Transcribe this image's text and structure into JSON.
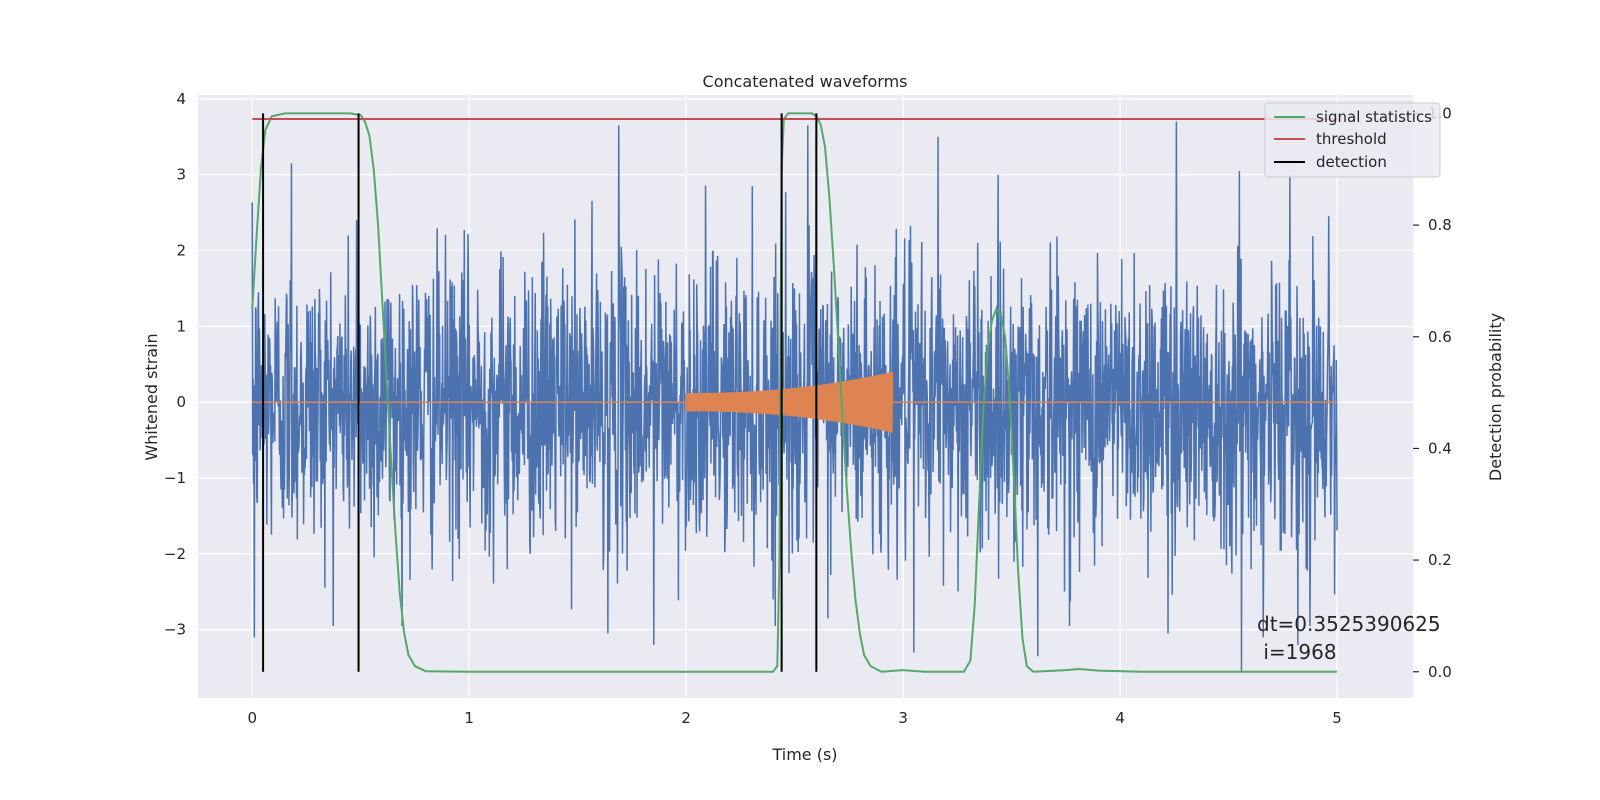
{
  "chart_data": {
    "type": "line",
    "title": "Concatenated waveforms",
    "xlabel": "Time (s)",
    "ylabel": "Whitened strain",
    "ylabel_right": "Detection probability",
    "xlim": [
      -0.25,
      5.35
    ],
    "ylim": [
      -3.9,
      4.05
    ],
    "ylim_right": [
      -0.047,
      1.033
    ],
    "x_ticks": [
      0,
      1,
      2,
      3,
      4,
      5
    ],
    "x_tick_labels": [
      "0",
      "1",
      "2",
      "3",
      "4",
      "5"
    ],
    "y_ticks": [
      -3,
      -2,
      -1,
      0,
      1,
      2,
      3,
      4
    ],
    "y_tick_labels": [
      "−3",
      "−2",
      "−1",
      "0",
      "1",
      "2",
      "3",
      "4"
    ],
    "y_ticks_right": [
      0.0,
      0.2,
      0.4,
      0.6,
      0.8,
      1.0
    ],
    "y_tick_labels_right": [
      "0.0",
      "0.2",
      "0.4",
      "0.6",
      "0.8",
      "1.0"
    ],
    "grid": true,
    "legend_position": "top-right",
    "series": [
      {
        "name": "",
        "kind": "noisy-strain",
        "color": "#4c72b0",
        "axis": "left",
        "x_range": [
          0,
          5
        ],
        "spikes": [
          {
            "x": 0.01,
            "y": -3.1
          },
          {
            "x": 0.18,
            "y": 3.15
          },
          {
            "x": 0.48,
            "y": 2.4
          },
          {
            "x": 1.69,
            "y": 3.65
          },
          {
            "x": 1.64,
            "y": -3.05
          },
          {
            "x": 1.85,
            "y": -3.2
          },
          {
            "x": 2.4,
            "y": -2.6
          },
          {
            "x": 2.56,
            "y": 3.65
          },
          {
            "x": 2.6,
            "y": 3.6
          },
          {
            "x": 3.05,
            "y": -3.3
          },
          {
            "x": 3.16,
            "y": 3.5
          },
          {
            "x": 3.62,
            "y": -3.35
          },
          {
            "x": 4.26,
            "y": 3.7
          },
          {
            "x": 4.22,
            "y": -3.05
          },
          {
            "x": 4.56,
            "y": -3.55
          },
          {
            "x": 4.66,
            "y": -3.1
          },
          {
            "x": 4.82,
            "y": -3.2
          },
          {
            "x": 4.55,
            "y": 3.05
          }
        ]
      },
      {
        "name": "",
        "kind": "injected-chirp",
        "color": "#dd8452",
        "axis": "left",
        "x_range": [
          0,
          5
        ],
        "chirp_start": 2.0,
        "chirp_end": 2.95,
        "amplitude_start": 0.12,
        "amplitude_end": 0.4
      },
      {
        "name": "signal statistics",
        "color": "#55a868",
        "axis": "right",
        "points": [
          [
            0.0,
            0.65
          ],
          [
            0.02,
            0.78
          ],
          [
            0.04,
            0.9
          ],
          [
            0.06,
            0.97
          ],
          [
            0.09,
            0.995
          ],
          [
            0.15,
            1.0
          ],
          [
            0.45,
            1.0
          ],
          [
            0.5,
            0.997
          ],
          [
            0.52,
            0.985
          ],
          [
            0.54,
            0.96
          ],
          [
            0.56,
            0.9
          ],
          [
            0.58,
            0.8
          ],
          [
            0.6,
            0.66
          ],
          [
            0.62,
            0.52
          ],
          [
            0.64,
            0.38
          ],
          [
            0.66,
            0.25
          ],
          [
            0.68,
            0.14
          ],
          [
            0.7,
            0.07
          ],
          [
            0.72,
            0.03
          ],
          [
            0.75,
            0.01
          ],
          [
            0.8,
            0.001
          ],
          [
            1.0,
            0.0
          ],
          [
            2.4,
            0.0
          ],
          [
            2.42,
            0.01
          ],
          [
            2.43,
            0.2
          ],
          [
            2.435,
            0.6
          ],
          [
            2.44,
            0.9
          ],
          [
            2.45,
            0.99
          ],
          [
            2.47,
            1.0
          ],
          [
            2.58,
            1.0
          ],
          [
            2.6,
            0.995
          ],
          [
            2.62,
            0.98
          ],
          [
            2.64,
            0.94
          ],
          [
            2.66,
            0.85
          ],
          [
            2.68,
            0.73
          ],
          [
            2.7,
            0.6
          ],
          [
            2.72,
            0.46
          ],
          [
            2.74,
            0.33
          ],
          [
            2.76,
            0.22
          ],
          [
            2.78,
            0.13
          ],
          [
            2.8,
            0.07
          ],
          [
            2.82,
            0.03
          ],
          [
            2.85,
            0.01
          ],
          [
            2.9,
            0.0
          ],
          [
            3.0,
            0.003
          ],
          [
            3.1,
            0.0
          ],
          [
            3.28,
            0.0
          ],
          [
            3.31,
            0.02
          ],
          [
            3.33,
            0.12
          ],
          [
            3.35,
            0.3
          ],
          [
            3.37,
            0.47
          ],
          [
            3.39,
            0.58
          ],
          [
            3.41,
            0.63
          ],
          [
            3.43,
            0.65
          ],
          [
            3.45,
            0.64
          ],
          [
            3.47,
            0.6
          ],
          [
            3.49,
            0.5
          ],
          [
            3.51,
            0.35
          ],
          [
            3.53,
            0.18
          ],
          [
            3.55,
            0.06
          ],
          [
            3.57,
            0.01
          ],
          [
            3.6,
            0.0
          ],
          [
            3.75,
            0.003
          ],
          [
            3.81,
            0.005
          ],
          [
            3.9,
            0.002
          ],
          [
            4.1,
            0.0
          ],
          [
            5.0,
            0.0
          ]
        ]
      },
      {
        "name": "threshold",
        "color": "#c44e52",
        "axis": "right",
        "points": [
          [
            0.0,
            0.99
          ],
          [
            5.0,
            0.99
          ]
        ]
      },
      {
        "name": "detection",
        "color": "#000000",
        "axis": "right",
        "vlines": [
          0.05,
          0.49,
          2.44,
          2.6
        ],
        "vline_range": [
          0.0,
          1.0
        ]
      }
    ],
    "annotations": [
      "dt=0.3525390625",
      " i=1968"
    ],
    "colors": {
      "background": "#eaeaf2",
      "grid": "#ffffff",
      "strain": "#4c72b0",
      "chirp": "#dd8452",
      "signal_statistics": "#55a868",
      "threshold": "#c44e52",
      "detection": "#000000"
    }
  }
}
